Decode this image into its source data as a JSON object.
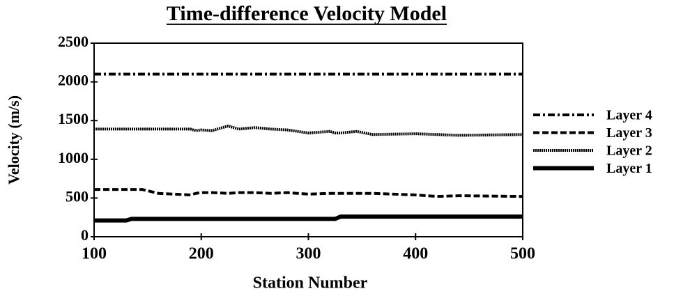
{
  "chart_data": {
    "type": "line",
    "title": "Time-difference  Velocity  Model",
    "x_label": "Station  Number",
    "y_label": "Velocity  (m/s)",
    "x": [
      100,
      130,
      135,
      145,
      160,
      190,
      195,
      200,
      210,
      225,
      235,
      250,
      265,
      280,
      300,
      320,
      325,
      330,
      345,
      360,
      400,
      420,
      440,
      500
    ],
    "series": [
      {
        "name": "Layer 4",
        "color": "#000000",
        "style": "dash-dot",
        "values": [
          2100,
          2100,
          2100,
          2100,
          2100,
          2100,
          2100,
          2100,
          2100,
          2100,
          2100,
          2100,
          2100,
          2100,
          2100,
          2100,
          2100,
          2100,
          2100,
          2100,
          2100,
          2100,
          2100,
          2100
        ]
      },
      {
        "name": "Layer 3",
        "color": "#000000",
        "style": "dashed",
        "values": [
          610,
          610,
          610,
          610,
          560,
          540,
          560,
          570,
          570,
          560,
          570,
          570,
          560,
          570,
          550,
          560,
          560,
          560,
          560,
          560,
          540,
          520,
          530,
          520
        ]
      },
      {
        "name": "Layer 2",
        "color": "#000000",
        "style": "dotted",
        "values": [
          1390,
          1390,
          1390,
          1390,
          1390,
          1390,
          1370,
          1380,
          1370,
          1430,
          1390,
          1410,
          1390,
          1380,
          1340,
          1360,
          1340,
          1340,
          1360,
          1320,
          1330,
          1320,
          1310,
          1320
        ]
      },
      {
        "name": "Layer 1",
        "color": "#000000",
        "style": "solid",
        "values": [
          210,
          210,
          230,
          230,
          230,
          230,
          230,
          230,
          230,
          230,
          230,
          230,
          230,
          230,
          230,
          230,
          230,
          260,
          260,
          260,
          260,
          260,
          260,
          260
        ]
      }
    ],
    "xlim": [
      100,
      500
    ],
    "xticks": [
      100,
      200,
      300,
      400,
      500
    ],
    "ylim": [
      0,
      2500
    ],
    "yticks": [
      0,
      500,
      1000,
      1500,
      2000,
      2500
    ],
    "grid": false,
    "legend": "right"
  }
}
